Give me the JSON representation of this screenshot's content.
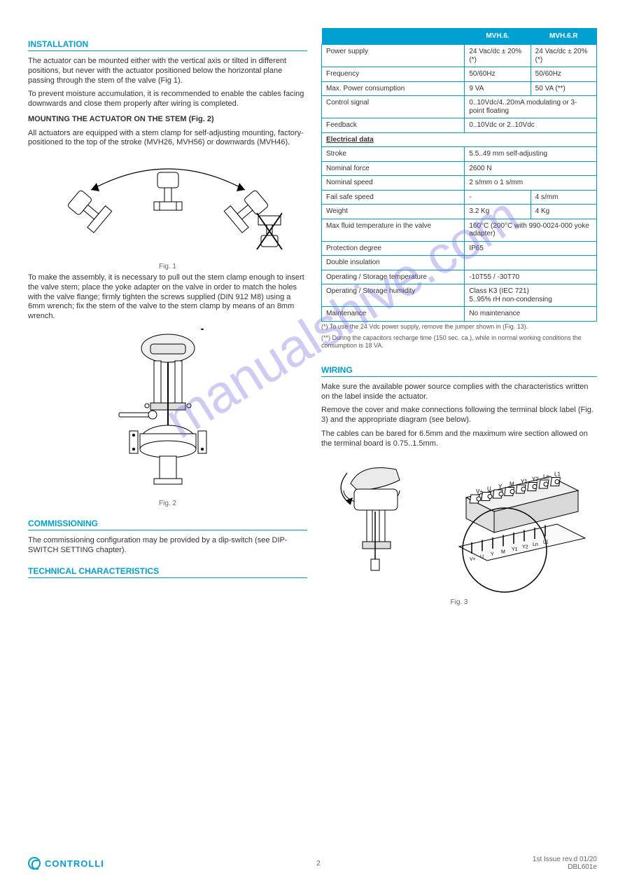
{
  "watermark": "manualshive.com",
  "left": {
    "installation_heading": "INSTALLATION",
    "p1": "The actuator can be mounted either with the vertical axis or tilted in different positions, but never with the actuator positioned below the horizontal plane passing through the stem of the valve (Fig 1).",
    "p2": "To prevent moisture accumulation, it is recommended to enable the cables facing downwards and close them properly after wiring is completed.",
    "mounting_subheading": "MOUNTING THE ACTUATOR ON THE STEM (Fig. 2)",
    "p3": "All actuators are equipped with a stem clamp for self-adjusting mounting, factory-positioned to the top of the stroke (MVH26, MVH56) or downwards (MVH46).",
    "p4": "To make the assembly, it is necessary to pull out the stem clamp enough to insert the valve stem; place the yoke adapter on the valve in order to match the holes with the valve flange; firmly tighten the screws supplied (DIN 912 M8) using a 6mm wrench; fix the stem of the valve to the stem clamp by means of an 8mm wrench.",
    "fig1_caption": "Fig. 1",
    "fig2_caption": "Fig. 2",
    "commissioning_heading": "COMMISSIONING",
    "p5": "The commissioning configuration may be provided by a dip-switch (see DIP-SWITCH SETTING chapter)."
  },
  "tech_heading": "TECHNICAL CHARACTERISTICS",
  "table": {
    "headers": [
      "",
      "MVH.6.",
      "MVH.6.R"
    ],
    "subheader": "Electrical data",
    "rows1": [
      {
        "label": "Power supply",
        "v1": "24 Vac/dc ± 20% (*)",
        "v2": "24 Vac/dc ± 20% (*)"
      },
      {
        "label": "Frequency",
        "v1": "50/60Hz",
        "v2": "50/60Hz"
      },
      {
        "label": "Max. Power consumption",
        "v1": "9 VA",
        "v2": "50 VA (**)"
      },
      {
        "label": "Control signal",
        "span": "0..10Vdc/4..20mA modulating or 3-point floating"
      },
      {
        "label": "Feedback",
        "span": "0..10Vdc or 2..10Vdc"
      }
    ],
    "rows2": [
      {
        "label": "Stroke",
        "span": "5.5..49 mm self-adjusting"
      },
      {
        "label": "Nominal force",
        "span": "2600 N"
      },
      {
        "label": "Nominal speed",
        "span": "2 s/mm o 1 s/mm"
      },
      {
        "label": "Fail safe speed",
        "v1": "-",
        "v2": "4 s/mm"
      },
      {
        "label": "Weight",
        "v1": "3.2 Kg",
        "v2": "4 Kg"
      },
      {
        "label": "Max fluid temperature in the valve",
        "span": "160°C (200°C with 990-0024-000 yoke adapter)"
      },
      {
        "label": "Protection degree",
        "span": "IP65"
      },
      {
        "label": "Double insulation",
        "span": ""
      },
      {
        "label": "Operating / Storage temperature",
        "span": "-10T55 / -30T70"
      },
      {
        "label": "Operating / Storage humidity",
        "span": "Class K3 (IEC 721)\n5..95% rH non-condensing"
      },
      {
        "label": "Maintenance",
        "span": "No maintenance"
      }
    ],
    "footnotes": [
      "(*) To use the 24 Vdc power supply, remove the jumper shown in (Fig. 13).",
      "(**) During the capacitors recharge time (150 sec. ca.), while in normal working conditions the consumption is 18 VA."
    ]
  },
  "wiring": {
    "heading": "WIRING",
    "p1": "Make sure the available power source complies with the characteristics written on the label inside the actuator.",
    "p2": "Remove the cover and make connections following the terminal block label (Fig. 3) and the appropriate diagram (see below).",
    "p3": "The cables can be bared for 6.5mm and the maximum wire section allowed on the terminal board is 0.75..1.5mm.",
    "fig3_caption": "Fig. 3",
    "terminal_labels": [
      "V+",
      "U",
      "Y",
      "M",
      "Y1",
      "Y2",
      "Ln",
      "L1"
    ]
  },
  "footer": {
    "logo_text": "CONTROLLI",
    "page": "2",
    "edition": "1st Issue rev.d  01/20",
    "doc": "DBL601e"
  }
}
